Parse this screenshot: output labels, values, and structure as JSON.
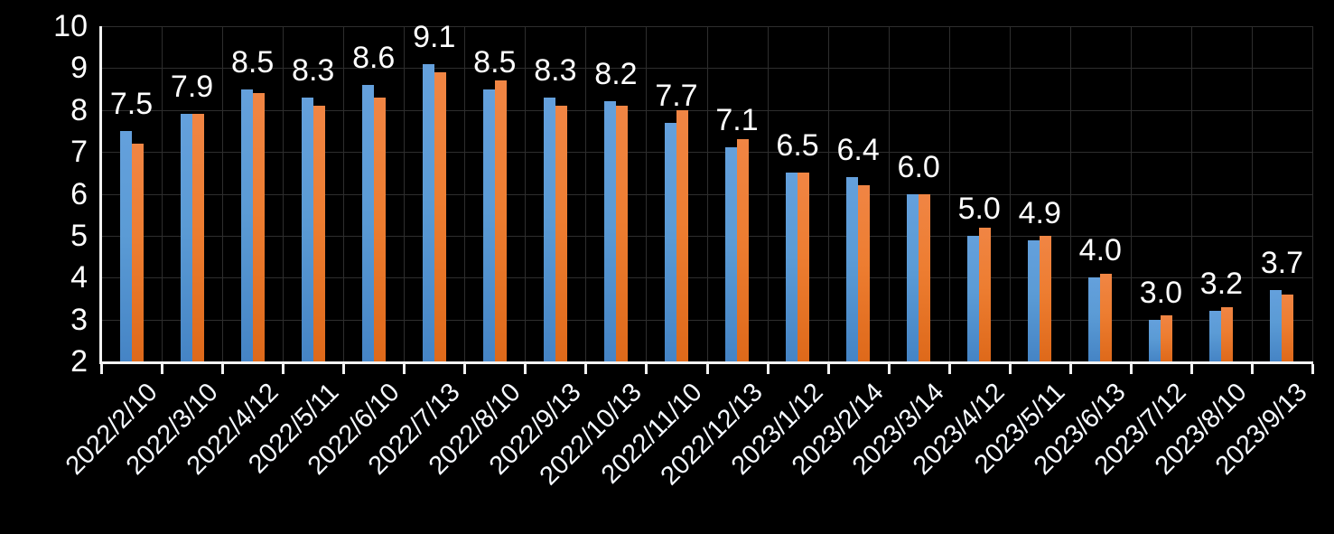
{
  "chart_data": {
    "type": "bar",
    "title": "",
    "xlabel": "",
    "ylabel": "",
    "categories": [
      "2022/2/10",
      "2022/3/10",
      "2022/4/12",
      "2022/5/11",
      "2022/6/10",
      "2022/7/13",
      "2022/8/10",
      "2022/9/13",
      "2022/10/13",
      "2022/11/10",
      "2022/12/13",
      "2023/1/12",
      "2023/2/14",
      "2023/3/14",
      "2023/4/12",
      "2023/5/11",
      "2023/6/13",
      "2023/7/12",
      "2023/8/10",
      "2023/9/13"
    ],
    "series": [
      {
        "name": "series-1-blue",
        "color": "#5B9BD5",
        "color_top": "#64A0DC",
        "color_bottom": "#4584C5",
        "values": [
          7.5,
          7.9,
          8.5,
          8.3,
          8.6,
          9.1,
          8.5,
          8.3,
          8.2,
          7.7,
          7.1,
          6.5,
          6.4,
          6.0,
          5.0,
          4.9,
          4.0,
          3.0,
          3.2,
          3.7
        ]
      },
      {
        "name": "series-2-orange",
        "color": "#ED7D31",
        "color_top": "#F08544",
        "color_bottom": "#DE691A",
        "values": [
          7.2,
          7.9,
          8.4,
          8.1,
          8.3,
          8.9,
          8.7,
          8.1,
          8.1,
          8.0,
          7.3,
          6.5,
          6.2,
          6.0,
          5.2,
          5.0,
          4.1,
          3.1,
          3.3,
          3.6
        ]
      }
    ],
    "data_labels": [
      "7.5",
      "7.9",
      "8.5",
      "8.3",
      "8.6",
      "9.1",
      "8.5",
      "8.3",
      "8.2",
      "7.7",
      "7.1",
      "6.5",
      "6.4",
      "6.0",
      "5.0",
      "4.9",
      "4.0",
      "3.0",
      "3.2",
      "3.7"
    ],
    "data_labels_series": "series-1-blue",
    "yticks": [
      10,
      9,
      8,
      7,
      6,
      5,
      4,
      3,
      2
    ],
    "ylim": [
      2,
      10
    ],
    "grid": true,
    "legend": "none"
  },
  "colors": {
    "background": "#000000",
    "gridline": "#2e2e2e",
    "axis_line": "#f2f2f2",
    "text": "#ffffff"
  }
}
